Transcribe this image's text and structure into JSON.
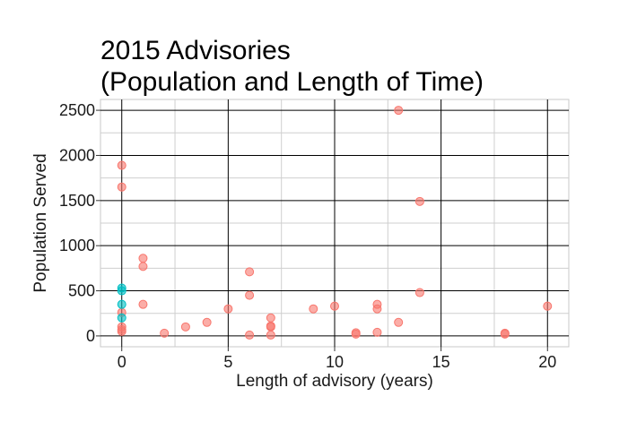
{
  "chart_data": {
    "type": "scatter",
    "title_lines": [
      "2015 Advisories",
      "(Population and Length of Time)"
    ],
    "xlabel": "Length of advisory (years)",
    "ylabel": "Population Served",
    "xlim": [
      -1,
      21
    ],
    "ylim": [
      -120,
      2620
    ],
    "x_ticks": [
      0,
      5,
      10,
      15,
      20
    ],
    "y_ticks": [
      0,
      500,
      1000,
      1500,
      2000,
      2500
    ],
    "x_tick_labels": [
      "0",
      "5",
      "10",
      "15",
      "20"
    ],
    "y_tick_labels": [
      "0",
      "500",
      "1000",
      "1500",
      "2000",
      "2500"
    ],
    "grid": true,
    "series": [
      {
        "color": "#f8766d",
        "points": [
          {
            "x": 0,
            "y": 1890
          },
          {
            "x": 0,
            "y": 1650
          },
          {
            "x": 0,
            "y": 260
          },
          {
            "x": 0,
            "y": 100
          },
          {
            "x": 0,
            "y": 70
          },
          {
            "x": 0,
            "y": 50
          },
          {
            "x": 1,
            "y": 860
          },
          {
            "x": 1,
            "y": 770
          },
          {
            "x": 1,
            "y": 350
          },
          {
            "x": 2,
            "y": 30
          },
          {
            "x": 3,
            "y": 100
          },
          {
            "x": 4,
            "y": 150
          },
          {
            "x": 5,
            "y": 300
          },
          {
            "x": 6,
            "y": 710
          },
          {
            "x": 6,
            "y": 450
          },
          {
            "x": 6,
            "y": 10
          },
          {
            "x": 7,
            "y": 200
          },
          {
            "x": 7,
            "y": 110
          },
          {
            "x": 7,
            "y": 100
          },
          {
            "x": 7,
            "y": 10
          },
          {
            "x": 9,
            "y": 300
          },
          {
            "x": 10,
            "y": 330
          },
          {
            "x": 11,
            "y": 35
          },
          {
            "x": 11,
            "y": 20
          },
          {
            "x": 12,
            "y": 350
          },
          {
            "x": 12,
            "y": 300
          },
          {
            "x": 12,
            "y": 40
          },
          {
            "x": 13,
            "y": 2500
          },
          {
            "x": 13,
            "y": 150
          },
          {
            "x": 14,
            "y": 1490
          },
          {
            "x": 14,
            "y": 480
          },
          {
            "x": 18,
            "y": 30
          },
          {
            "x": 18,
            "y": 20
          },
          {
            "x": 20,
            "y": 330
          }
        ]
      },
      {
        "color": "#00bfc4",
        "points": [
          {
            "x": 0,
            "y": 530
          },
          {
            "x": 0,
            "y": 500
          },
          {
            "x": 0,
            "y": 350
          },
          {
            "x": 0,
            "y": 200
          }
        ]
      }
    ]
  }
}
